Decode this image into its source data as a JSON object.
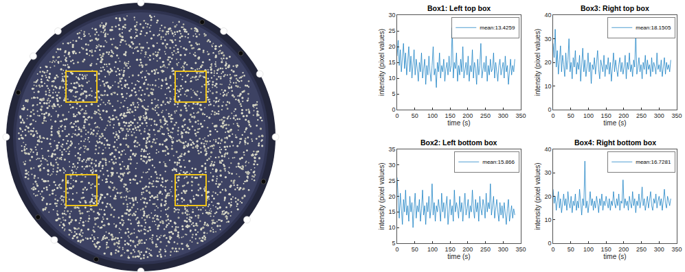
{
  "chart_data": [
    {
      "type": "line",
      "title": "Box1: Left top box",
      "xlabel": "time (s)",
      "ylabel": "intensity (pixel values)",
      "xlim": [
        0,
        350
      ],
      "xticks": [
        0,
        50,
        100,
        150,
        200,
        250,
        300,
        350
      ],
      "ylim": [
        0,
        30
      ],
      "yticks": [
        0,
        5,
        10,
        15,
        20,
        25,
        30
      ],
      "grid": false,
      "legend": "upper right",
      "x": [
        0,
        3,
        6,
        9,
        12,
        15,
        18,
        21,
        24,
        27,
        30,
        33,
        36,
        39,
        42,
        45,
        48,
        51,
        54,
        57,
        60,
        63,
        66,
        69,
        72,
        75,
        78,
        81,
        84,
        87,
        90,
        93,
        96,
        99,
        102,
        105,
        108,
        111,
        114,
        117,
        120,
        123,
        126,
        129,
        132,
        135,
        138,
        141,
        144,
        147,
        150,
        153,
        156,
        159,
        162,
        165,
        168,
        171,
        174,
        177,
        180,
        183,
        186,
        189,
        192,
        195,
        198,
        201,
        204,
        207,
        210,
        213,
        216,
        219,
        222,
        225,
        228,
        231,
        234,
        237,
        240,
        243,
        246,
        249,
        252,
        255,
        258,
        261,
        264,
        267,
        270,
        273,
        276,
        279,
        282,
        285,
        288,
        291,
        294,
        297,
        300,
        303,
        306,
        309,
        312,
        315,
        318,
        321,
        324,
        327,
        330,
        333
      ],
      "series": [
        {
          "name": "mean:13.4259",
          "color": "#0072bd",
          "values": [
            17,
            22,
            14,
            19,
            12,
            16,
            21,
            13,
            18,
            11,
            15,
            20,
            12,
            17,
            10,
            14,
            19,
            11,
            16,
            13,
            9,
            15,
            12,
            18,
            10,
            13,
            16,
            8,
            14,
            11,
            17,
            12,
            9,
            14,
            20,
            11,
            13,
            7,
            15,
            12,
            18,
            10,
            14,
            12,
            16,
            9,
            13,
            15,
            11,
            17,
            12,
            14,
            26,
            10,
            15,
            13,
            18,
            9,
            14,
            11,
            16,
            12,
            20,
            10,
            13,
            15,
            11,
            17,
            9,
            14,
            12,
            19,
            10,
            15,
            13,
            8,
            16,
            11,
            14,
            21,
            10,
            13,
            15,
            12,
            17,
            9,
            14,
            11,
            16,
            12,
            13,
            18,
            10,
            15,
            12,
            9,
            14,
            16,
            11,
            13,
            15,
            10,
            17,
            12,
            14,
            8,
            13,
            16,
            11,
            14,
            12,
            16
          ]
        }
      ]
    },
    {
      "type": "line",
      "title": "Box3: Right top box",
      "xlabel": "time (s)",
      "ylabel": "intensity (pixel values)",
      "xlim": [
        0,
        350
      ],
      "xticks": [
        0,
        50,
        100,
        150,
        200,
        250,
        300,
        350
      ],
      "ylim": [
        0,
        40
      ],
      "yticks": [
        0,
        10,
        20,
        30,
        40
      ],
      "grid": false,
      "legend": "upper right",
      "x": [
        0,
        3,
        6,
        9,
        12,
        15,
        18,
        21,
        24,
        27,
        30,
        33,
        36,
        39,
        42,
        45,
        48,
        51,
        54,
        57,
        60,
        63,
        66,
        69,
        72,
        75,
        78,
        81,
        84,
        87,
        90,
        93,
        96,
        99,
        102,
        105,
        108,
        111,
        114,
        117,
        120,
        123,
        126,
        129,
        132,
        135,
        138,
        141,
        144,
        147,
        150,
        153,
        156,
        159,
        162,
        165,
        168,
        171,
        174,
        177,
        180,
        183,
        186,
        189,
        192,
        195,
        198,
        201,
        204,
        207,
        210,
        213,
        216,
        219,
        222,
        225,
        228,
        231,
        234,
        237,
        240,
        243,
        246,
        249,
        252,
        255,
        258,
        261,
        264,
        267,
        270,
        273,
        276,
        279,
        282,
        285,
        288,
        291,
        294,
        297,
        300,
        303,
        306,
        309,
        312,
        315,
        318,
        321,
        324,
        327,
        330,
        333
      ],
      "series": [
        {
          "name": "mean:18.1505",
          "color": "#0072bd",
          "values": [
            28,
            22,
            34,
            18,
            25,
            15,
            21,
            27,
            16,
            23,
            19,
            14,
            24,
            17,
            21,
            30,
            16,
            20,
            13,
            22,
            18,
            25,
            15,
            20,
            17,
            23,
            12,
            19,
            26,
            16,
            21,
            14,
            18,
            24,
            16,
            20,
            11,
            19,
            17,
            22,
            15,
            20,
            25,
            17,
            13,
            21,
            18,
            16,
            23,
            14,
            19,
            17,
            22,
            15,
            20,
            12,
            18,
            24,
            16,
            21,
            17,
            14,
            19,
            22,
            16,
            20,
            15,
            18,
            23,
            13,
            20,
            17,
            24,
            16,
            19,
            14,
            21,
            18,
            33,
            15,
            18,
            22,
            16,
            19,
            13,
            20,
            17,
            23,
            15,
            21,
            17,
            19,
            14,
            22,
            16,
            20,
            18,
            15,
            24,
            17,
            19,
            16,
            21,
            14,
            18,
            22,
            15,
            20,
            17,
            19,
            16,
            21
          ]
        }
      ]
    },
    {
      "type": "line",
      "title": "Box2: Left bottom box",
      "xlabel": "time (s)",
      "ylabel": "intensity (pixel values)",
      "xlim": [
        0,
        350
      ],
      "xticks": [
        0,
        50,
        100,
        150,
        200,
        250,
        300,
        350
      ],
      "ylim": [
        5,
        35
      ],
      "yticks": [
        5,
        10,
        15,
        20,
        25,
        30,
        35
      ],
      "grid": false,
      "legend": "upper right",
      "x": [
        0,
        3,
        6,
        9,
        12,
        15,
        18,
        21,
        24,
        27,
        30,
        33,
        36,
        39,
        42,
        45,
        48,
        51,
        54,
        57,
        60,
        63,
        66,
        69,
        72,
        75,
        78,
        81,
        84,
        87,
        90,
        93,
        96,
        99,
        102,
        105,
        108,
        111,
        114,
        117,
        120,
        123,
        126,
        129,
        132,
        135,
        138,
        141,
        144,
        147,
        150,
        153,
        156,
        159,
        162,
        165,
        168,
        171,
        174,
        177,
        180,
        183,
        186,
        189,
        192,
        195,
        198,
        201,
        204,
        207,
        210,
        213,
        216,
        219,
        222,
        225,
        228,
        231,
        234,
        237,
        240,
        243,
        246,
        249,
        252,
        255,
        258,
        261,
        264,
        267,
        270,
        273,
        276,
        279,
        282,
        285,
        288,
        291,
        294,
        297,
        300,
        303,
        306,
        309,
        312,
        315,
        318,
        321,
        324,
        327,
        330,
        333
      ],
      "series": [
        {
          "name": "mean:15.866",
          "color": "#0072bd",
          "values": [
            26,
            18,
            13,
            21,
            16,
            11,
            19,
            15,
            22,
            14,
            17,
            12,
            20,
            15,
            18,
            10,
            16,
            21,
            13,
            17,
            15,
            19,
            12,
            16,
            22,
            14,
            17,
            11,
            18,
            15,
            20,
            13,
            16,
            24,
            14,
            18,
            12,
            17,
            15,
            19,
            16,
            12,
            21,
            15,
            18,
            13,
            17,
            20,
            11,
            16,
            19,
            14,
            17,
            12,
            22,
            15,
            18,
            16,
            13,
            20,
            15,
            18,
            12,
            17,
            21,
            14,
            16,
            19,
            13,
            17,
            15,
            22,
            16,
            13,
            19,
            15,
            18,
            12,
            20,
            16,
            14,
            19,
            17,
            13,
            21,
            15,
            18,
            16,
            24,
            14,
            17,
            20,
            13,
            16,
            19,
            15,
            12,
            18,
            14,
            17,
            13,
            18,
            15,
            11,
            16,
            19,
            12,
            15,
            17,
            13,
            16,
            14
          ]
        }
      ]
    },
    {
      "type": "line",
      "title": "Box4: Right bottom box",
      "xlabel": "time (s)",
      "ylabel": "intensity (pixel values)",
      "xlim": [
        0,
        350
      ],
      "xticks": [
        0,
        50,
        100,
        150,
        200,
        250,
        300,
        350
      ],
      "ylim": [
        0,
        40
      ],
      "yticks": [
        0,
        10,
        20,
        30,
        40
      ],
      "grid": false,
      "legend": "upper right",
      "x": [
        0,
        3,
        6,
        9,
        12,
        15,
        18,
        21,
        24,
        27,
        30,
        33,
        36,
        39,
        42,
        45,
        48,
        51,
        54,
        57,
        60,
        63,
        66,
        69,
        72,
        75,
        78,
        81,
        84,
        87,
        90,
        93,
        96,
        99,
        102,
        105,
        108,
        111,
        114,
        117,
        120,
        123,
        126,
        129,
        132,
        135,
        138,
        141,
        144,
        147,
        150,
        153,
        156,
        159,
        162,
        165,
        168,
        171,
        174,
        177,
        180,
        183,
        186,
        189,
        192,
        195,
        198,
        201,
        204,
        207,
        210,
        213,
        216,
        219,
        222,
        225,
        228,
        231,
        234,
        237,
        240,
        243,
        246,
        249,
        252,
        255,
        258,
        261,
        264,
        267,
        270,
        273,
        276,
        279,
        282,
        285,
        288,
        291,
        294,
        297,
        300,
        303,
        306,
        309,
        312,
        315,
        318,
        321,
        324,
        327,
        330,
        333
      ],
      "series": [
        {
          "name": "mean:16.7281",
          "color": "#0072bd",
          "values": [
            23,
            17,
            20,
            14,
            18,
            22,
            15,
            19,
            13,
            17,
            21,
            16,
            19,
            14,
            22,
            17,
            15,
            20,
            13,
            18,
            16,
            21,
            14,
            18,
            15,
            23,
            17,
            12,
            19,
            16,
            35,
            15,
            18,
            13,
            17,
            22,
            16,
            19,
            14,
            18,
            15,
            20,
            17,
            13,
            19,
            16,
            21,
            14,
            18,
            16,
            20,
            17,
            15,
            19,
            14,
            18,
            16,
            22,
            17,
            15,
            19,
            16,
            21,
            14,
            18,
            17,
            27,
            15,
            19,
            16,
            18,
            14,
            20,
            17,
            15,
            22,
            16,
            19,
            13,
            18,
            16,
            21,
            15,
            18,
            24,
            16,
            19,
            14,
            17,
            20,
            15,
            18,
            22,
            16,
            14,
            19,
            17,
            21,
            15,
            18,
            20,
            16,
            19,
            14,
            18,
            23,
            17,
            15,
            20,
            18,
            16,
            19
          ]
        }
      ]
    }
  ]
}
